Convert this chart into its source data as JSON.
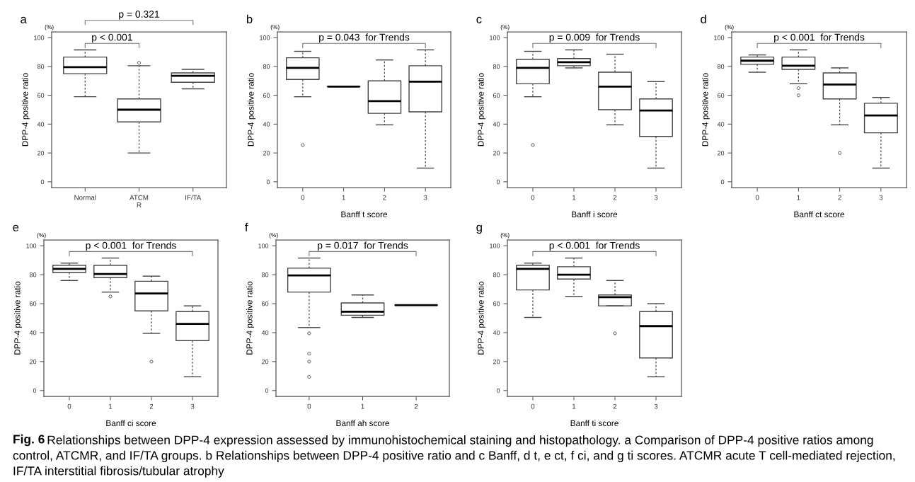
{
  "chart_data": [
    {
      "type": "box",
      "title": "a",
      "ylabel": "DPP-4 positive ratio",
      "categories": [
        "Normal",
        "ATCM\nR",
        "IF/TA"
      ],
      "ylim": [
        -4,
        104
      ],
      "yticks": [
        0,
        20,
        40,
        60,
        80,
        100
      ],
      "annotations": [
        "(%)",
        "p = 0.321",
        "p < 0.001"
      ],
      "boxes": [
        {
          "low": 59,
          "q1": 75,
          "median": 79.5,
          "q3": 86.5,
          "high": 91.5
        },
        {
          "low": 20,
          "q1": 41.5,
          "median": 50,
          "q3": 57.5,
          "high": 80.5,
          "outliers": [
            82.5
          ]
        },
        {
          "low": 64.5,
          "q1": 69,
          "median": 73.5,
          "q3": 75.5,
          "high": 78
        }
      ]
    },
    {
      "type": "box",
      "title": "b",
      "ylabel": "DPP-4 positive ratio",
      "xlabel": "Banff t score",
      "categories": [
        "0",
        "1",
        "2",
        "3"
      ],
      "ylim": [
        -4,
        104
      ],
      "yticks": [
        0,
        20,
        40,
        60,
        80,
        100
      ],
      "annotations": [
        "(%)",
        "p = 0.043  for Trends"
      ],
      "boxes": [
        {
          "low": 59,
          "q1": 71,
          "median": 79,
          "q3": 86,
          "high": 90.5,
          "outliers": [
            25.5
          ]
        },
        {
          "low": 66,
          "q1": 66,
          "median": 66,
          "q3": 66,
          "high": 66
        },
        {
          "low": 39.5,
          "q1": 47.5,
          "median": 56,
          "q3": 70,
          "high": 84.5
        },
        {
          "low": 9.5,
          "q1": 48.5,
          "median": 69.5,
          "q3": 80.5,
          "high": 91.5
        }
      ]
    },
    {
      "type": "box",
      "title": "c",
      "ylabel": "DPP-4 positive ratio",
      "xlabel": "Banff i score",
      "categories": [
        "0",
        "1",
        "2",
        "3"
      ],
      "ylim": [
        -4,
        104
      ],
      "yticks": [
        0,
        20,
        40,
        60,
        80,
        100
      ],
      "annotations": [
        "(%)",
        "p = 0.009  for Trends"
      ],
      "boxes": [
        {
          "low": 59,
          "q1": 68,
          "median": 79,
          "q3": 85,
          "high": 90.5,
          "outliers": [
            25.5
          ]
        },
        {
          "low": 79,
          "q1": 80.5,
          "median": 83,
          "q3": 85.5,
          "high": 91.5
        },
        {
          "low": 39.5,
          "q1": 50,
          "median": 66,
          "q3": 76,
          "high": 88.5
        },
        {
          "low": 9.5,
          "q1": 31.5,
          "median": 49.5,
          "q3": 57.5,
          "high": 69.5
        }
      ]
    },
    {
      "type": "box",
      "title": "d",
      "ylabel": "DPP-4 positive ratio",
      "xlabel": "Banff ct score",
      "categories": [
        "0",
        "1",
        "2",
        "3"
      ],
      "ylim": [
        -4,
        104
      ],
      "yticks": [
        0,
        20,
        40,
        60,
        80,
        100
      ],
      "annotations": [
        "(%)",
        "p < 0.001  for Trends"
      ],
      "boxes": [
        {
          "low": 76,
          "q1": 81.5,
          "median": 84,
          "q3": 86.5,
          "high": 88
        },
        {
          "low": 68,
          "q1": 78,
          "median": 80.5,
          "q3": 86.5,
          "high": 91.5,
          "outliers": [
            65,
            60
          ]
        },
        {
          "low": 39.5,
          "q1": 57.5,
          "median": 67.5,
          "q3": 75.5,
          "high": 79,
          "outliers": [
            20
          ]
        },
        {
          "low": 9.5,
          "q1": 34,
          "median": 46,
          "q3": 54.5,
          "high": 58.5
        }
      ]
    },
    {
      "type": "box",
      "title": "e",
      "ylabel": "DPP-4 positive ratio",
      "xlabel": "Banff ci score",
      "categories": [
        "0",
        "1",
        "2",
        "3"
      ],
      "ylim": [
        -4,
        104
      ],
      "yticks": [
        0,
        20,
        40,
        60,
        80,
        100
      ],
      "annotations": [
        "(%)",
        "p < 0.001  for Trends"
      ],
      "boxes": [
        {
          "low": 76,
          "q1": 81.5,
          "median": 84,
          "q3": 86.5,
          "high": 88
        },
        {
          "low": 68,
          "q1": 78,
          "median": 80.5,
          "q3": 86.5,
          "high": 91.5,
          "outliers": [
            65
          ]
        },
        {
          "low": 39.5,
          "q1": 55,
          "median": 67,
          "q3": 75.5,
          "high": 79,
          "outliers": [
            20
          ]
        },
        {
          "low": 9.5,
          "q1": 34.5,
          "median": 46,
          "q3": 54.5,
          "high": 58.5
        }
      ]
    },
    {
      "type": "box",
      "title": "f",
      "ylabel": "DPP-4 positive ratio",
      "xlabel": "Banff ah score",
      "categories": [
        "0",
        "1",
        "2"
      ],
      "ylim": [
        -4,
        104
      ],
      "yticks": [
        0,
        20,
        40,
        60,
        80,
        100
      ],
      "annotations": [
        "(%)",
        "p = 0.017  for Trends"
      ],
      "boxes": [
        {
          "low": 43.5,
          "q1": 68,
          "median": 79.5,
          "q3": 84.5,
          "high": 91.5,
          "outliers": [
            39.5,
            25.5,
            20,
            9.5
          ]
        },
        {
          "low": 50.5,
          "q1": 52,
          "median": 54.5,
          "q3": 60.5,
          "high": 66
        },
        {
          "low": 59,
          "q1": 59,
          "median": 59,
          "q3": 59,
          "high": 59
        }
      ]
    },
    {
      "type": "box",
      "title": "g",
      "ylabel": "DPP-4 positive ratio",
      "xlabel": "Banff ti score",
      "categories": [
        "0",
        "1",
        "2",
        "3"
      ],
      "ylim": [
        -4,
        104
      ],
      "yticks": [
        0,
        20,
        40,
        60,
        80,
        100
      ],
      "annotations": [
        "(%)",
        "p < 0.001  for Trends"
      ],
      "boxes": [
        {
          "low": 50.5,
          "q1": 69.5,
          "median": 84,
          "q3": 86.5,
          "high": 88
        },
        {
          "low": 65,
          "q1": 77,
          "median": 80,
          "q3": 85.5,
          "high": 91.5
        },
        {
          "low": 58.5,
          "q1": 58.5,
          "median": 64.5,
          "q3": 66,
          "high": 76,
          "outliers": [
            39.5
          ]
        },
        {
          "low": 9.5,
          "q1": 22.5,
          "median": 44.5,
          "q3": 54.5,
          "high": 60
        }
      ]
    },
    {
      "type": "other",
      "title": "Fig. 6",
      "annotations": [
        "Relationships between DPP-4 expression assessed by immunohistochemical staining and histopathology. a Comparison of DPP-4 positive ratios among control, ATCMR, and IF/TA groups. b Relationships between DPP-4 positive ratio and c Banff, d t, e ct, f ci, and g ti scores. ATCMR acute T cell-mediated rejection, IF/TA interstitial fibrosis/tubular atrophy"
      ]
    }
  ]
}
